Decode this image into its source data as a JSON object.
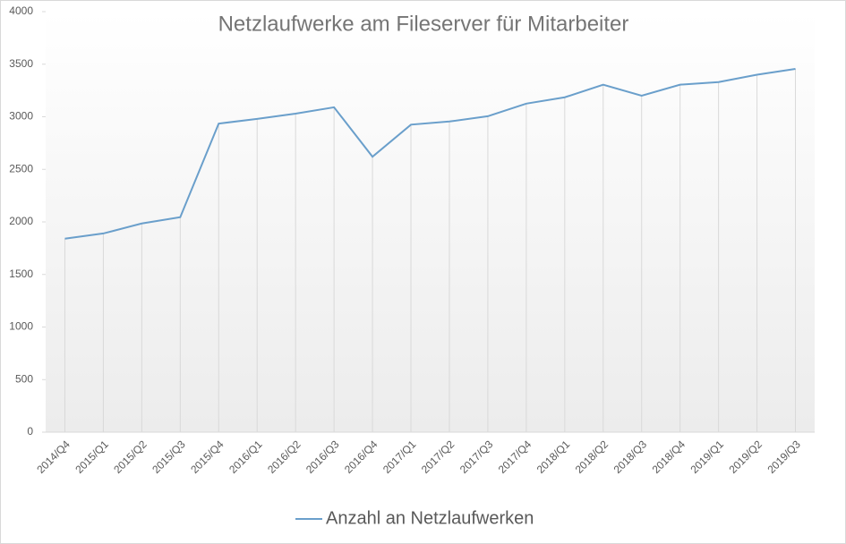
{
  "chart_data": {
    "type": "line",
    "title": "Netzlaufwerke  am Fileserver  für Mitarbeiter",
    "categories": [
      "2014/Q4",
      "2015/Q1",
      "2015/Q2",
      "2015/Q3",
      "2015/Q4",
      "2016/Q1",
      "2016/Q2",
      "2016/Q3",
      "2016/Q4",
      "2017/Q1",
      "2017/Q2",
      "2017/Q3",
      "2017/Q4",
      "2018/Q1",
      "2018/Q2",
      "2018/Q3",
      "2018/Q4",
      "2019/Q1",
      "2019/Q2",
      "2019/Q3"
    ],
    "series": [
      {
        "name": "Anzahl an Netzlaufwerken",
        "color": "#6a9fcb",
        "values": [
          1840,
          1890,
          1985,
          2045,
          2935,
          2980,
          3030,
          3090,
          2620,
          2925,
          2955,
          3005,
          3125,
          3185,
          3305,
          3200,
          3305,
          3330,
          3400,
          3455
        ]
      }
    ],
    "ylim": [
      0,
      4000
    ],
    "yticks": [
      0,
      500,
      1000,
      1500,
      2000,
      2500,
      3000,
      3500,
      4000
    ],
    "grid": false,
    "drop_lines": true,
    "legend": "bottom"
  }
}
